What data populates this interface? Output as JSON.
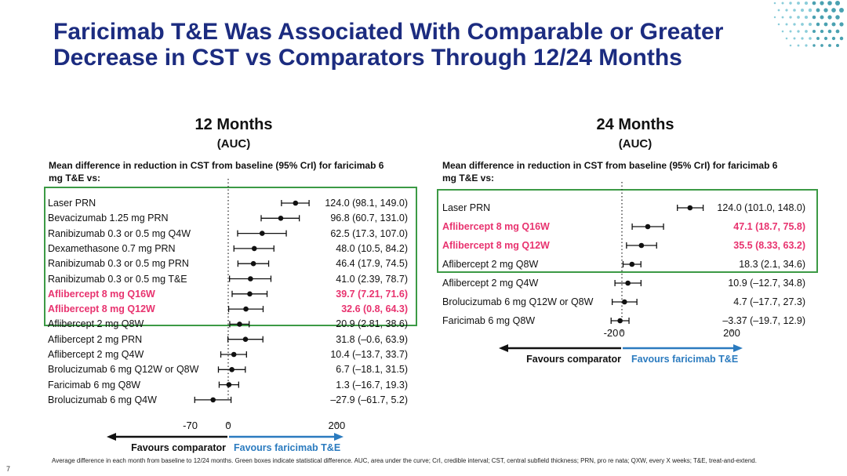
{
  "title": "Faricimab T&E Was Associated With Comparable or Greater Decrease in CST vs Comparators Through 12/24 Months",
  "colors": {
    "title": "#1c2c80",
    "highlight": "#e8336f",
    "sig_box": "#3c9a45",
    "favours_faricimab": "#2b7bbf"
  },
  "chart_data": [
    {
      "type": "forest",
      "panel_title": "12 Months",
      "panel_subtitle": "(AUC)",
      "heading": "Mean difference in reduction in CST from baseline (95% CrI) for faricimab 6 mg T&E vs:",
      "xlim": [
        -70,
        200
      ],
      "x_ticks": [
        "-70",
        "0",
        "200"
      ],
      "favours_comparator": "Favours comparator",
      "favours_faricimab": "Favours faricimab T&E",
      "rows": [
        {
          "label": "Laser PRN",
          "value_text": "124.0 (98.1, 149.0)",
          "est": 124.0,
          "lo": 98.1,
          "hi": 149.0,
          "highlight": false,
          "significant": true
        },
        {
          "label": "Bevacizumab 1.25 mg PRN",
          "value_text": "96.8 (60.7, 131.0)",
          "est": 96.8,
          "lo": 60.7,
          "hi": 131.0,
          "highlight": false,
          "significant": true
        },
        {
          "label": "Ranibizumab 0.3 or 0.5 mg Q4W",
          "value_text": "62.5 (17.3, 107.0)",
          "est": 62.5,
          "lo": 17.3,
          "hi": 107.0,
          "highlight": false,
          "significant": true
        },
        {
          "label": "Dexamethasone 0.7 mg PRN",
          "value_text": "48.0 (10.5, 84.2)",
          "est": 48.0,
          "lo": 10.5,
          "hi": 84.2,
          "highlight": false,
          "significant": true
        },
        {
          "label": "Ranibizumab 0.3 or 0.5 mg PRN",
          "value_text": "46.4 (17.9, 74.5)",
          "est": 46.4,
          "lo": 17.9,
          "hi": 74.5,
          "highlight": false,
          "significant": true
        },
        {
          "label": "Ranibizumab 0.3 or 0.5 mg T&E",
          "value_text": "41.0 (2.39, 78.7)",
          "est": 41.0,
          "lo": 2.39,
          "hi": 78.7,
          "highlight": false,
          "significant": true
        },
        {
          "label": "Aflibercept 8 mg Q16W",
          "value_text": "39.7 (7.21, 71.6)",
          "est": 39.7,
          "lo": 7.21,
          "hi": 71.6,
          "highlight": true,
          "significant": true
        },
        {
          "label": "Aflibercept 8 mg Q12W",
          "value_text": "32.6 (0.8, 64.3)",
          "est": 32.6,
          "lo": 0.8,
          "hi": 64.3,
          "highlight": true,
          "significant": true
        },
        {
          "label": "Aflibercept 2 mg Q8W",
          "value_text": "20.9 (2.81, 38.6)",
          "est": 20.9,
          "lo": 2.81,
          "hi": 38.6,
          "highlight": false,
          "significant": true
        },
        {
          "label": "Aflibercept 2 mg PRN",
          "value_text": "31.8 (–0.6, 63.9)",
          "est": 31.8,
          "lo": -0.6,
          "hi": 63.9,
          "highlight": false,
          "significant": false
        },
        {
          "label": "Aflibercept 2 mg Q4W",
          "value_text": "10.4 (–13.7, 33.7)",
          "est": 10.4,
          "lo": -13.7,
          "hi": 33.7,
          "highlight": false,
          "significant": false
        },
        {
          "label": "Brolucizumab 6 mg Q12W or Q8W",
          "value_text": "6.7 (–18.1, 31.5)",
          "est": 6.7,
          "lo": -18.1,
          "hi": 31.5,
          "highlight": false,
          "significant": false
        },
        {
          "label": "Faricimab 6 mg Q8W",
          "value_text": "1.3 (–16.7, 19.3)",
          "est": 1.3,
          "lo": -16.7,
          "hi": 19.3,
          "highlight": false,
          "significant": false
        },
        {
          "label": "Brolucizumab 6 mg Q4W",
          "value_text": "–27.9 (–61.7, 5.2)",
          "est": -27.9,
          "lo": -61.7,
          "hi": 5.2,
          "highlight": false,
          "significant": false
        }
      ]
    },
    {
      "type": "forest",
      "panel_title": "24 Months",
      "panel_subtitle": "(AUC)",
      "heading": "Mean difference in reduction in CST from baseline (95% CrI) for faricimab 6 mg T&E vs:",
      "xlim": [
        -20,
        200
      ],
      "x_ticks": [
        "-20",
        "0",
        "200"
      ],
      "favours_comparator": "Favours comparator",
      "favours_faricimab": "Favours faricimab T&E",
      "rows": [
        {
          "label": "Laser PRN",
          "value_text": "124.0 (101.0, 148.0)",
          "est": 124.0,
          "lo": 101.0,
          "hi": 148.0,
          "highlight": false,
          "significant": true
        },
        {
          "label": "Aflibercept 8 mg Q16W",
          "value_text": "47.1 (18.7, 75.8)",
          "est": 47.1,
          "lo": 18.7,
          "hi": 75.8,
          "highlight": true,
          "significant": true
        },
        {
          "label": "Aflibercept 8 mg Q12W",
          "value_text": "35.5 (8.33, 63.2)",
          "est": 35.5,
          "lo": 8.33,
          "hi": 63.2,
          "highlight": true,
          "significant": true
        },
        {
          "label": "Aflibercept 2 mg Q8W",
          "value_text": "18.3 (2.1, 34.6)",
          "est": 18.3,
          "lo": 2.1,
          "hi": 34.6,
          "highlight": false,
          "significant": true
        },
        {
          "label": "Aflibercept 2 mg Q4W",
          "value_text": "10.9 (–12.7, 34.8)",
          "est": 10.9,
          "lo": -12.7,
          "hi": 34.8,
          "highlight": false,
          "significant": false
        },
        {
          "label": "Brolucizumab 6 mg Q12W or Q8W",
          "value_text": "4.7 (–17.7, 27.3)",
          "est": 4.7,
          "lo": -17.7,
          "hi": 27.3,
          "highlight": false,
          "significant": false
        },
        {
          "label": "Faricimab 6 mg Q8W",
          "value_text": "–3.37 (–19.7, 12.9)",
          "est": -3.37,
          "lo": -19.7,
          "hi": 12.9,
          "highlight": false,
          "significant": false
        }
      ]
    }
  ],
  "footnote": "Average difference in each month from baseline to 12/24 months. Green boxes indicate statistical difference. AUC, area under the curve; CrI, credible interval; CST, central subfield thickness; PRN, pro re nata; QXW, every X weeks; T&E, treat-and-extend.",
  "slide_number": "7"
}
